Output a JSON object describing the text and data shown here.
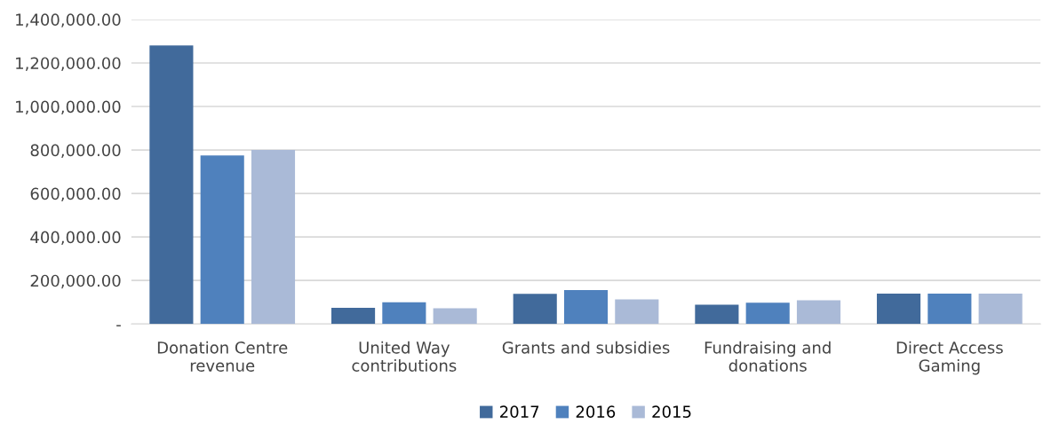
{
  "chart_data": {
    "type": "bar",
    "categories": [
      "Donation Centre\nrevenue",
      "United Way\ncontributions",
      "Grants and subsidies",
      "Fundraising and\ndonations",
      "Direct Access\nGaming"
    ],
    "series": [
      {
        "name": "2017",
        "color": "#416a9b",
        "values": [
          1280000,
          74000,
          139000,
          89000,
          140000
        ]
      },
      {
        "name": "2016",
        "color": "#4f81bd",
        "values": [
          775000,
          100000,
          156000,
          98000,
          140000
        ]
      },
      {
        "name": "2015",
        "color": "#aabad7",
        "values": [
          800000,
          72000,
          113000,
          109000,
          140000
        ]
      }
    ],
    "ylim": [
      0,
      1400000
    ],
    "yticks": [
      {
        "value": 0,
        "label": "-"
      },
      {
        "value": 200000,
        "label": "200,000.00"
      },
      {
        "value": 400000,
        "label": "400,000.00"
      },
      {
        "value": 600000,
        "label": "600,000.00"
      },
      {
        "value": 800000,
        "label": "800,000.00"
      },
      {
        "value": 1000000,
        "label": "1,000,000.00"
      },
      {
        "value": 1200000,
        "label": "1,200,000.00"
      },
      {
        "value": 1400000,
        "label": "1,400,000.00"
      }
    ],
    "grid": "y",
    "legend": "bottom"
  }
}
